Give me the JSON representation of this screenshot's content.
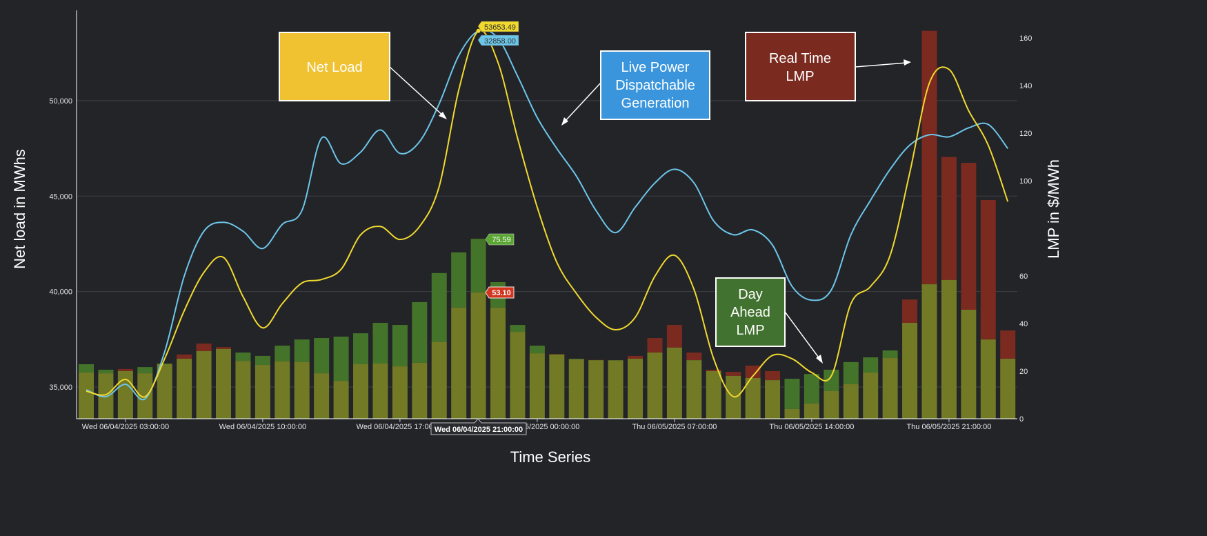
{
  "chart_data": {
    "type": "bar+line",
    "xlabel": "Time Series",
    "ylabel_left": "Net load in MWhs",
    "ylabel_right": "LMP in $/MWh",
    "left_axis": {
      "ticks": [
        "35,000",
        "40,000",
        "45,000",
        "50,000"
      ],
      "tick_values": [
        35000,
        40000,
        45000,
        50000
      ],
      "range": [
        33340,
        54730
      ]
    },
    "right_axis": {
      "ticks": [
        "0",
        "20",
        "40",
        "60",
        "100",
        "120",
        "140",
        "160"
      ],
      "tick_values": [
        0,
        20,
        40,
        60,
        100,
        120,
        140,
        160
      ],
      "range": [
        0,
        160
      ]
    },
    "x_tick_labels": [
      "Wed 06/04/2025 03:00:00",
      "Wed 06/04/2025 10:00:00",
      "Wed 06/04/2025 17:00:00",
      "Thu 06/05/2025 00:00:00",
      "Thu 06/05/2025 07:00:00",
      "Thu 06/05/2025 14:00:00",
      "Thu 06/05/2025 21:00:00"
    ],
    "x_start": "Wed 06/04/2025 01:00:00",
    "x_step_hours": 1,
    "grid": "horizontal",
    "series": [
      {
        "name": "Day Ahead LMP",
        "type": "bar",
        "axis": "right",
        "color": "#44742a",
        "values": [
          22.9,
          20.6,
          20.0,
          21.7,
          23.2,
          25.2,
          28.4,
          29.3,
          27.8,
          26.4,
          30.7,
          33.3,
          33.9,
          34.5,
          35.9,
          40.3,
          39.4,
          49.0,
          61.2,
          69.9,
          75.59,
          57.4,
          39.4,
          30.7,
          27.0,
          25.2,
          24.6,
          24.6,
          25.2,
          27.8,
          29.9,
          24.6,
          20.0,
          18.0,
          17.1,
          16.2,
          16.8,
          18.8,
          20.6,
          23.8,
          25.8,
          28.7,
          40.3,
          56.5,
          58.3,
          45.8,
          33.3,
          25.2
        ]
      },
      {
        "name": "Real Time LMP",
        "type": "bar",
        "axis": "right",
        "color": "#7b2a20",
        "values": [
          19.4,
          19.1,
          20.9,
          19.1,
          23.0,
          27.0,
          31.6,
          30.1,
          24.3,
          22.6,
          24.1,
          23.8,
          19.1,
          15.9,
          22.9,
          23.2,
          22.0,
          23.5,
          32.2,
          46.7,
          53.1,
          46.7,
          36.5,
          27.5,
          27.2,
          25.0,
          24.7,
          24.5,
          26.4,
          33.9,
          39.4,
          27.8,
          20.6,
          19.7,
          22.3,
          20.0,
          4.1,
          6.4,
          11.6,
          14.5,
          19.4,
          25.5,
          50.1,
          163.0,
          110.0,
          107.5,
          91.9,
          37.1
        ]
      },
      {
        "name": "Net Load",
        "type": "line",
        "axis": "left",
        "color": "#f2d92e",
        "values": [
          34783,
          34600,
          35400,
          34495,
          36480,
          39000,
          41000,
          41790,
          39730,
          38100,
          39370,
          40450,
          40630,
          41170,
          42980,
          43410,
          42730,
          43410,
          45500,
          50560,
          53653.49,
          52000,
          48030,
          44420,
          41530,
          39900,
          38650,
          38000,
          38650,
          40800,
          41900,
          40100,
          36480,
          34500,
          35580,
          36660,
          36480,
          35760,
          35580,
          39370,
          40270,
          41900,
          46230,
          50920,
          51640,
          49480,
          47670,
          44710
        ]
      },
      {
        "name": "Live Power Dispatchable Generation",
        "type": "line",
        "axis": "hidden",
        "color": "#6cc6ea",
        "values": [
          21346,
          21125,
          21522,
          21058,
          22562,
          24993,
          26431,
          26718,
          26431,
          25878,
          26652,
          27094,
          29415,
          28597,
          28973,
          29680,
          28929,
          29305,
          30520,
          32068,
          32858.0,
          32621,
          31405,
          30078,
          29084,
          28199,
          27094,
          26386,
          27204,
          27978,
          28420,
          27978,
          26762,
          26320,
          26475,
          25988,
          24662,
          24220,
          24551,
          26320,
          27425,
          28420,
          29194,
          29526,
          29459,
          29747,
          29857,
          29084
        ]
      }
    ],
    "annotations": [
      {
        "text": "Net Load",
        "color": "#f0c232"
      },
      {
        "text": "Live Power Dispatchable Generation",
        "lines": [
          "Live Power",
          "Dispatchable",
          "Generation"
        ],
        "color": "#3a95dc"
      },
      {
        "text": "Real Time LMP",
        "lines": [
          "Real Time",
          "LMP"
        ],
        "color": "#7b2a20"
      },
      {
        "text": "Day Ahead LMP",
        "lines": [
          "Day",
          "Ahead",
          "LMP"
        ],
        "color": "#42722f"
      }
    ],
    "tooltip": {
      "x_label": "Wed 06/04/2025 21:00:00",
      "net_load": "53653.49",
      "dispatchable": "32858.00",
      "day_ahead": "75.59",
      "real_time": "53.10"
    }
  }
}
